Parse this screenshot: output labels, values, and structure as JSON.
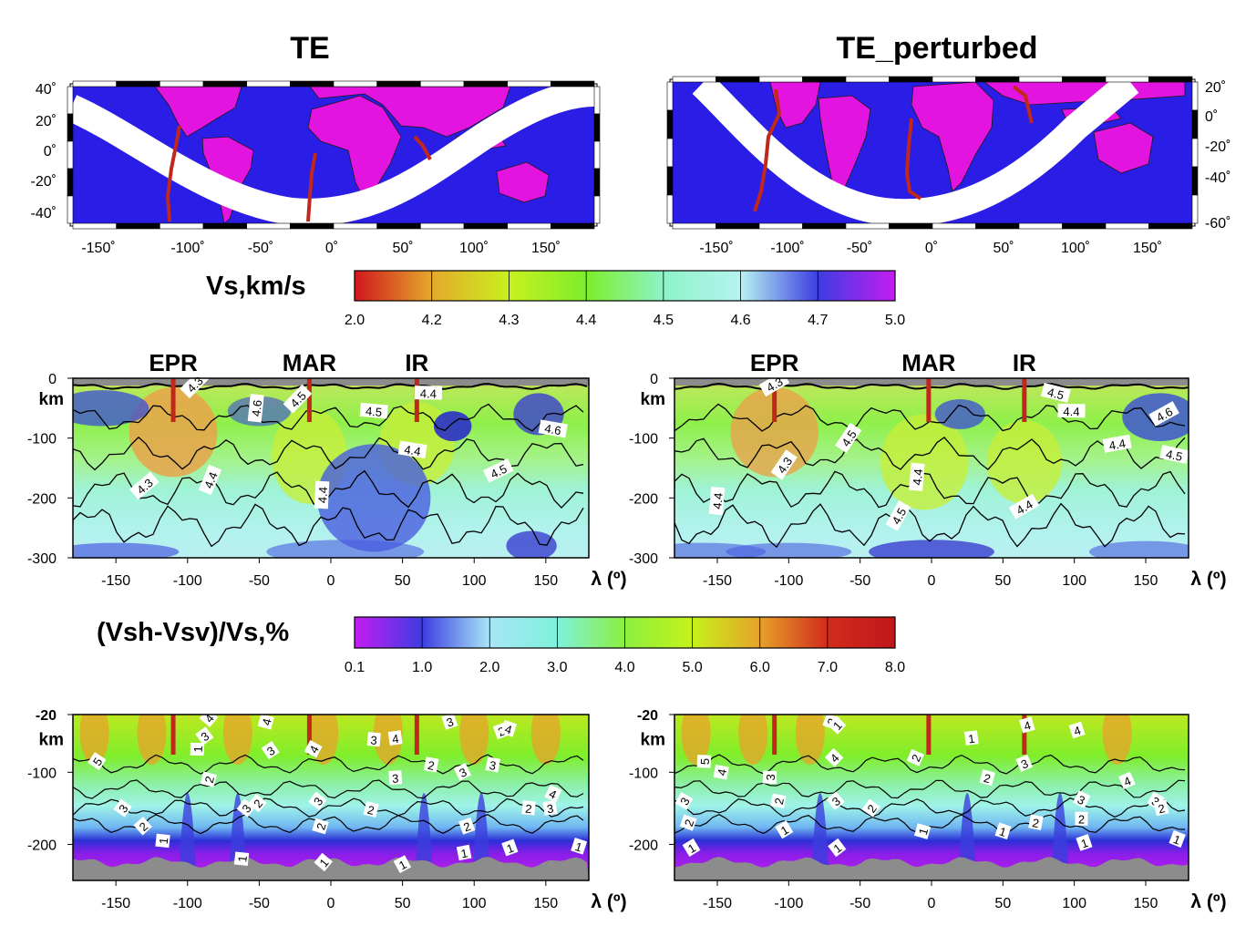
{
  "panel_titles": {
    "left": "TE",
    "right": "TE_perturbed"
  },
  "map_left_axis": {
    "lat_ticks": [
      "40˚",
      "20˚",
      "0˚",
      "-20˚",
      "-40˚"
    ],
    "lon_ticks": [
      "-150˚",
      "-100˚",
      "-50˚",
      "0˚",
      "50˚",
      "100˚",
      "150˚"
    ]
  },
  "map_right_axis": {
    "lat_ticks": [
      "20˚",
      "0˚",
      "-20˚",
      "-40˚",
      "-60˚"
    ],
    "lon_ticks": [
      "-150˚",
      "-100˚",
      "-50˚",
      "0˚",
      "50˚",
      "100˚",
      "150˚"
    ]
  },
  "colors": {
    "ocean": "#2a1de6",
    "land": "#e314e0",
    "ridge": "#c0281b",
    "path": "#ffffff",
    "masked": "#8c8c8c"
  },
  "vs_colorbar": {
    "title": "Vs,km/s",
    "tick_labels": [
      "2.0",
      "4.2",
      "4.3",
      "4.4",
      "4.5",
      "4.6",
      "4.7",
      "5.0"
    ],
    "stops": [
      "#d0161d",
      "#e5a92b",
      "#c8f01f",
      "#7dee2a",
      "#8df3c8",
      "#b6f3f0",
      "#3d3de2",
      "#c41cf0"
    ]
  },
  "aniso_colorbar": {
    "title": "(Vsh-Vsv)/Vs,%",
    "tick_labels": [
      "0.1",
      "1.0",
      "2.0",
      "3.0",
      "4.0",
      "5.0",
      "6.0",
      "7.0",
      "8.0"
    ],
    "stops": [
      "#c41cf0",
      "#3d3de2",
      "#a8e6f6",
      "#7ff1dc",
      "#8cef3f",
      "#c6f21a",
      "#e6a22a",
      "#d22b1c",
      "#c0171a"
    ]
  },
  "ridge_labels": [
    "EPR",
    "MAR",
    "IR"
  ],
  "depth_axis_vs": {
    "ticks": [
      "0",
      "-100",
      "-200",
      "-300"
    ],
    "unit": "km"
  },
  "depth_axis_aniso": {
    "ticks": [
      "-20",
      "-100",
      "-200"
    ],
    "unit": "km"
  },
  "lon_axis": {
    "ticks": [
      "-150",
      "-100",
      "-50",
      "0",
      "50",
      "100",
      "150"
    ],
    "label": "λ (º)"
  },
  "chart_data": [
    {
      "type": "heatmap",
      "title": "TE",
      "quantity": "Vs,km/s",
      "xlim": [
        -180,
        180
      ],
      "ylim": [
        -300,
        0
      ],
      "ridges": [
        {
          "name": "EPR",
          "lon": -110
        },
        {
          "name": "MAR",
          "lon": -15
        },
        {
          "name": "IR",
          "lon": 60
        }
      ],
      "contour_labels": [
        {
          "text": "4.3",
          "lon": -95,
          "depth": -10
        },
        {
          "text": "4.6",
          "lon": -52,
          "depth": -50
        },
        {
          "text": "4.5",
          "lon": -23,
          "depth": -35
        },
        {
          "text": "4.5",
          "lon": 30,
          "depth": -55
        },
        {
          "text": "4.4",
          "lon": 68,
          "depth": -25
        },
        {
          "text": "4.6",
          "lon": 155,
          "depth": -85
        },
        {
          "text": "4.4",
          "lon": 57,
          "depth": -120
        },
        {
          "text": "4.5",
          "lon": 117,
          "depth": -155
        },
        {
          "text": "4.3",
          "lon": -130,
          "depth": -180
        },
        {
          "text": "4.4",
          "lon": -84,
          "depth": -170
        },
        {
          "text": "4.4",
          "lon": -6,
          "depth": -195
        }
      ]
    },
    {
      "type": "heatmap",
      "title": "TE_perturbed",
      "quantity": "Vs,km/s",
      "xlim": [
        -180,
        180
      ],
      "ylim": [
        -300,
        0
      ],
      "ridges": [
        {
          "name": "EPR",
          "lon": -110
        },
        {
          "name": "MAR",
          "lon": -2
        },
        {
          "name": "IR",
          "lon": 65
        }
      ],
      "contour_labels": [
        {
          "text": "4.3",
          "lon": -110,
          "depth": -10
        },
        {
          "text": "4.5",
          "lon": 87,
          "depth": -25
        },
        {
          "text": "4.4",
          "lon": 98,
          "depth": -55
        },
        {
          "text": "4.6",
          "lon": 163,
          "depth": -60
        },
        {
          "text": "4.5",
          "lon": -58,
          "depth": -100
        },
        {
          "text": "4.4",
          "lon": 130,
          "depth": -110
        },
        {
          "text": "4.5",
          "lon": 170,
          "depth": -128
        },
        {
          "text": "4.3",
          "lon": -103,
          "depth": -145
        },
        {
          "text": "4.4",
          "lon": -10,
          "depth": -165
        },
        {
          "text": "4.4",
          "lon": -150,
          "depth": -205
        },
        {
          "text": "4.5",
          "lon": -23,
          "depth": -230
        },
        {
          "text": "4.4",
          "lon": 65,
          "depth": -215
        }
      ]
    },
    {
      "type": "heatmap",
      "title": "TE",
      "quantity": "(Vsh-Vsv)/Vs,%",
      "xlim": [
        -180,
        180
      ],
      "ylim": [
        -250,
        -20
      ],
      "ridges": [
        {
          "name": "EPR",
          "lon": -110
        },
        {
          "name": "MAR",
          "lon": -15
        },
        {
          "name": "IR",
          "lon": 60
        }
      ],
      "contour_labels": [
        {
          "text": "4",
          "lon": -85,
          "depth": -25
        },
        {
          "text": "4",
          "lon": -45,
          "depth": -30
        },
        {
          "text": "3",
          "lon": -88,
          "depth": -50
        },
        {
          "text": "1",
          "lon": -93,
          "depth": -68
        },
        {
          "text": "3",
          "lon": -42,
          "depth": -70
        },
        {
          "text": "4",
          "lon": -12,
          "depth": -68
        },
        {
          "text": "3",
          "lon": 30,
          "depth": -55
        },
        {
          "text": "4",
          "lon": 45,
          "depth": -53
        },
        {
          "text": "3",
          "lon": 83,
          "depth": -30
        },
        {
          "text": "2",
          "lon": 119,
          "depth": -43
        },
        {
          "text": "4",
          "lon": 124,
          "depth": -40
        },
        {
          "text": "5",
          "lon": -163,
          "depth": -85
        },
        {
          "text": "2",
          "lon": -85,
          "depth": -110
        },
        {
          "text": "2",
          "lon": -51,
          "depth": -143
        },
        {
          "text": "3",
          "lon": -59,
          "depth": -150
        },
        {
          "text": "3",
          "lon": 45,
          "depth": -108
        },
        {
          "text": "2",
          "lon": 70,
          "depth": -90
        },
        {
          "text": "3",
          "lon": 92,
          "depth": -100
        },
        {
          "text": "3",
          "lon": 113,
          "depth": -90
        },
        {
          "text": "3",
          "lon": -145,
          "depth": -150
        },
        {
          "text": "3",
          "lon": -9,
          "depth": -140
        },
        {
          "text": "2",
          "lon": 28,
          "depth": -152
        },
        {
          "text": "2",
          "lon": 138,
          "depth": -150
        },
        {
          "text": "4",
          "lon": 155,
          "depth": -130
        },
        {
          "text": "3",
          "lon": 153,
          "depth": -150
        },
        {
          "text": "2",
          "lon": -131,
          "depth": -175
        },
        {
          "text": "2",
          "lon": -7,
          "depth": -175
        },
        {
          "text": "2",
          "lon": 95,
          "depth": -175
        },
        {
          "text": "1",
          "lon": -117,
          "depth": -195
        },
        {
          "text": "1",
          "lon": -62,
          "depth": -220
        },
        {
          "text": "1",
          "lon": -5,
          "depth": -225
        },
        {
          "text": "1",
          "lon": 50,
          "depth": -228
        },
        {
          "text": "1",
          "lon": 93,
          "depth": -212
        },
        {
          "text": "1",
          "lon": 125,
          "depth": -205
        },
        {
          "text": "1",
          "lon": 173,
          "depth": -203
        }
      ]
    },
    {
      "type": "heatmap",
      "title": "TE_perturbed",
      "quantity": "(Vsh-Vsv)/Vs,%",
      "xlim": [
        -180,
        180
      ],
      "ylim": [
        -250,
        -20
      ],
      "ridges": [
        {
          "name": "EPR",
          "lon": -110
        },
        {
          "name": "MAR",
          "lon": -2
        },
        {
          "name": "IR",
          "lon": 65
        }
      ],
      "contour_labels": [
        {
          "text": "2",
          "lon": -70,
          "depth": -30
        },
        {
          "text": "1",
          "lon": -66,
          "depth": -35
        },
        {
          "text": "4",
          "lon": -68,
          "depth": -80
        },
        {
          "text": "2",
          "lon": -11,
          "depth": -80
        },
        {
          "text": "1",
          "lon": 28,
          "depth": -53
        },
        {
          "text": "4",
          "lon": 67,
          "depth": -35
        },
        {
          "text": "3",
          "lon": 65,
          "depth": -88
        },
        {
          "text": "4",
          "lon": 102,
          "depth": -42
        },
        {
          "text": "5",
          "lon": -159,
          "depth": -85
        },
        {
          "text": "4",
          "lon": -147,
          "depth": -100
        },
        {
          "text": "3",
          "lon": -113,
          "depth": -107
        },
        {
          "text": "2",
          "lon": -107,
          "depth": -140
        },
        {
          "text": "3",
          "lon": -67,
          "depth": -140
        },
        {
          "text": "2",
          "lon": -42,
          "depth": -150
        },
        {
          "text": "2",
          "lon": 39,
          "depth": -108
        },
        {
          "text": "3",
          "lon": 105,
          "depth": -138
        },
        {
          "text": "4",
          "lon": 137,
          "depth": -112
        },
        {
          "text": "3",
          "lon": 157,
          "depth": -140
        },
        {
          "text": "2",
          "lon": 161,
          "depth": -150
        },
        {
          "text": "3",
          "lon": -173,
          "depth": -140
        },
        {
          "text": "2",
          "lon": -170,
          "depth": -170
        },
        {
          "text": "2",
          "lon": 105,
          "depth": -165
        },
        {
          "text": "2",
          "lon": 73,
          "depth": -170
        },
        {
          "text": "1",
          "lon": -103,
          "depth": -180
        },
        {
          "text": "1",
          "lon": -168,
          "depth": -205
        },
        {
          "text": "1",
          "lon": -66,
          "depth": -205
        },
        {
          "text": "1",
          "lon": -6,
          "depth": -182
        },
        {
          "text": "1",
          "lon": 50,
          "depth": -182
        },
        {
          "text": "1",
          "lon": 107,
          "depth": -198
        },
        {
          "text": "1",
          "lon": 172,
          "depth": -193
        }
      ]
    }
  ]
}
